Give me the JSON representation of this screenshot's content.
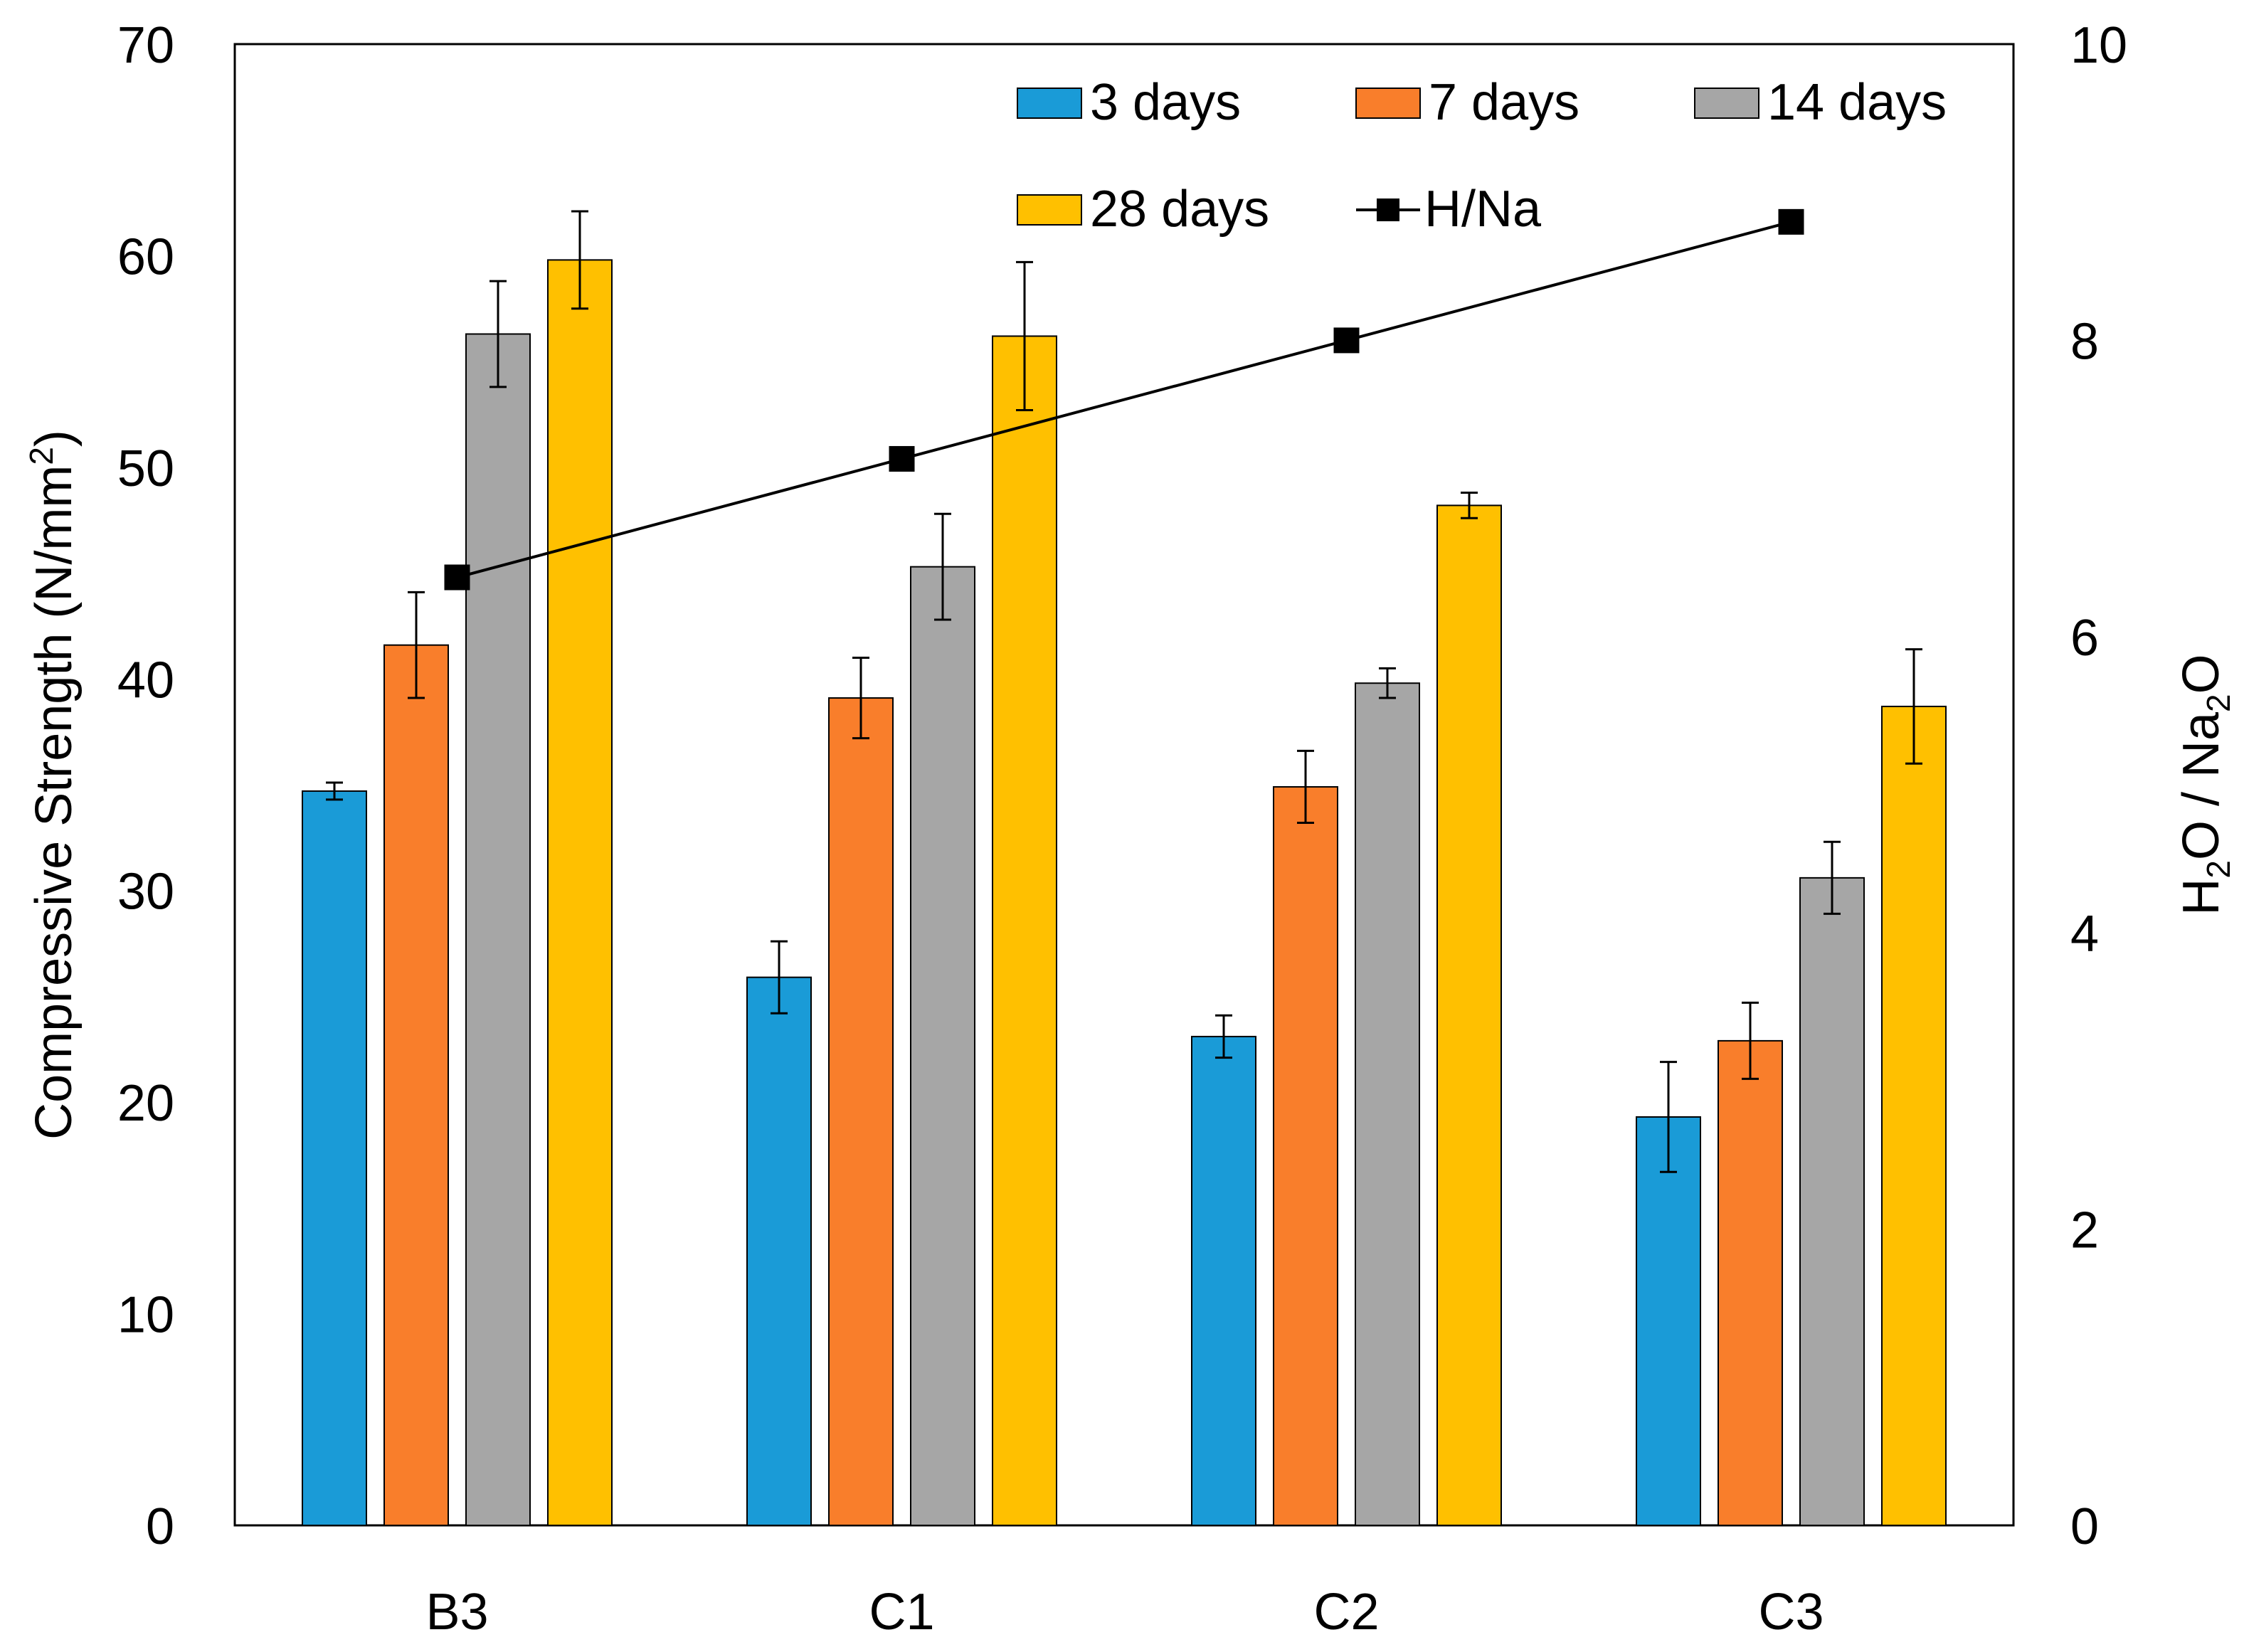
{
  "chart_data": {
    "type": "bar",
    "categories": [
      "B3",
      "C1",
      "C2",
      "C3"
    ],
    "series": [
      {
        "name": "3 days",
        "color": "#1A9BD7",
        "values": [
          34.7,
          25.9,
          23.1,
          19.3
        ],
        "errors": [
          0.4,
          1.7,
          1.0,
          2.6
        ]
      },
      {
        "name": "7 days",
        "color": "#F97E2B",
        "values": [
          41.6,
          39.1,
          34.9,
          22.9
        ],
        "errors": [
          2.5,
          1.9,
          1.7,
          1.8
        ]
      },
      {
        "name": "14 days",
        "color": "#A6A6A6",
        "values": [
          56.3,
          45.3,
          39.8,
          30.6
        ],
        "errors": [
          2.5,
          2.5,
          0.7,
          1.7
        ]
      },
      {
        "name": "28 days",
        "color": "#FFC000",
        "values": [
          59.8,
          56.2,
          48.2,
          38.7
        ],
        "errors": [
          2.3,
          3.5,
          0.6,
          2.7
        ]
      }
    ],
    "line_series": {
      "name": "H/Na",
      "color": "#000000",
      "values": [
        6.4,
        7.2,
        8.0,
        8.8
      ]
    },
    "ylabel": "Compressive Strength (N/mm",
    "ylabel_sup": "2",
    "ylabel_end": ")",
    "y2label_parts": [
      "H",
      "2",
      "O / Na",
      "2",
      "O"
    ],
    "ylim": [
      0,
      70
    ],
    "yticks": [
      "0",
      "10",
      "20",
      "30",
      "40",
      "50",
      "60",
      "70"
    ],
    "y2lim": [
      0,
      10
    ],
    "y2ticks": [
      "0",
      "2",
      "4",
      "6",
      "8",
      "10"
    ],
    "legend_position": "top-right",
    "grid": false
  }
}
